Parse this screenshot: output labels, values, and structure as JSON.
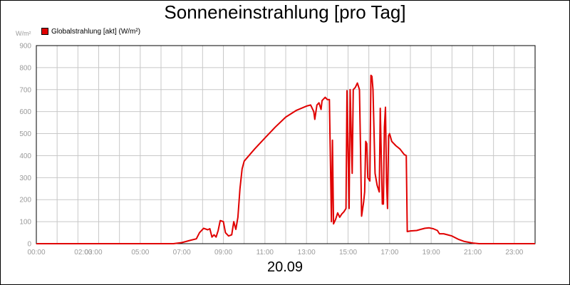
{
  "chart_data": {
    "type": "line",
    "title": "Sonneneinstrahlung [pro Tag]",
    "date_label": "20.09",
    "ylabel": "W/m²",
    "xlabel": "",
    "ylim": [
      0,
      900
    ],
    "xlim": [
      0,
      24
    ],
    "y_ticks": [
      "0",
      "100",
      "200",
      "300",
      "400",
      "500",
      "600",
      "700",
      "800",
      "900"
    ],
    "x_ticks": [
      {
        "h": 0,
        "label": "00:00"
      },
      {
        "h": 2,
        "label": "02:00"
      },
      {
        "h": 3,
        "label": "03:00"
      },
      {
        "h": 5,
        "label": "05:00"
      },
      {
        "h": 7,
        "label": "07:00"
      },
      {
        "h": 9,
        "label": "09:00"
      },
      {
        "h": 11,
        "label": "11:00"
      },
      {
        "h": 13,
        "label": "13:00"
      },
      {
        "h": 15,
        "label": "15:00"
      },
      {
        "h": 17,
        "label": "17:00"
      },
      {
        "h": 19,
        "label": "19:00"
      },
      {
        "h": 21,
        "label": "21:00"
      },
      {
        "h": 23,
        "label": "23:00"
      }
    ],
    "grid": true,
    "legend_position": "top-left",
    "series": [
      {
        "name": "Globalstrahlung [akt] (W/m²)",
        "color": "#e00000",
        "points": [
          [
            0,
            0
          ],
          [
            6.6,
            0
          ],
          [
            7.0,
            5
          ],
          [
            7.4,
            15
          ],
          [
            7.7,
            22
          ],
          [
            7.85,
            50
          ],
          [
            8.05,
            70
          ],
          [
            8.25,
            63
          ],
          [
            8.35,
            68
          ],
          [
            8.45,
            30
          ],
          [
            8.55,
            40
          ],
          [
            8.65,
            30
          ],
          [
            8.75,
            60
          ],
          [
            8.85,
            105
          ],
          [
            9.0,
            100
          ],
          [
            9.1,
            50
          ],
          [
            9.25,
            35
          ],
          [
            9.4,
            40
          ],
          [
            9.5,
            100
          ],
          [
            9.6,
            65
          ],
          [
            9.7,
            120
          ],
          [
            9.8,
            250
          ],
          [
            9.9,
            340
          ],
          [
            10.0,
            375
          ],
          [
            10.5,
            430
          ],
          [
            11.0,
            480
          ],
          [
            11.5,
            530
          ],
          [
            12.0,
            575
          ],
          [
            12.5,
            605
          ],
          [
            13.0,
            625
          ],
          [
            13.2,
            630
          ],
          [
            13.35,
            600
          ],
          [
            13.4,
            565
          ],
          [
            13.5,
            630
          ],
          [
            13.6,
            640
          ],
          [
            13.7,
            610
          ],
          [
            13.75,
            650
          ],
          [
            13.9,
            665
          ],
          [
            14.0,
            655
          ],
          [
            14.1,
            655
          ],
          [
            14.2,
            100
          ],
          [
            14.25,
            470
          ],
          [
            14.3,
            90
          ],
          [
            14.4,
            110
          ],
          [
            14.5,
            140
          ],
          [
            14.6,
            120
          ],
          [
            14.7,
            135
          ],
          [
            14.8,
            145
          ],
          [
            14.9,
            160
          ],
          [
            14.95,
            695
          ],
          [
            15.05,
            160
          ],
          [
            15.1,
            700
          ],
          [
            15.2,
            320
          ],
          [
            15.25,
            700
          ],
          [
            15.35,
            710
          ],
          [
            15.45,
            730
          ],
          [
            15.55,
            700
          ],
          [
            15.6,
            430
          ],
          [
            15.65,
            125
          ],
          [
            15.75,
            190
          ],
          [
            15.8,
            235
          ],
          [
            15.85,
            465
          ],
          [
            15.9,
            455
          ],
          [
            15.95,
            300
          ],
          [
            16.05,
            285
          ],
          [
            16.1,
            765
          ],
          [
            16.15,
            760
          ],
          [
            16.2,
            700
          ],
          [
            16.3,
            320
          ],
          [
            16.4,
            265
          ],
          [
            16.5,
            235
          ],
          [
            16.55,
            615
          ],
          [
            16.65,
            180
          ],
          [
            16.7,
            180
          ],
          [
            16.75,
            530
          ],
          [
            16.8,
            620
          ],
          [
            16.85,
            280
          ],
          [
            16.9,
            160
          ],
          [
            16.95,
            490
          ],
          [
            17.0,
            500
          ],
          [
            17.1,
            465
          ],
          [
            17.3,
            445
          ],
          [
            17.5,
            430
          ],
          [
            17.7,
            405
          ],
          [
            17.8,
            400
          ],
          [
            17.85,
            55
          ],
          [
            18.0,
            58
          ],
          [
            18.3,
            60
          ],
          [
            18.5,
            65
          ],
          [
            18.7,
            70
          ],
          [
            18.9,
            72
          ],
          [
            19.1,
            68
          ],
          [
            19.3,
            60
          ],
          [
            19.4,
            45
          ],
          [
            19.6,
            45
          ],
          [
            19.8,
            40
          ],
          [
            20.0,
            35
          ],
          [
            20.3,
            20
          ],
          [
            20.6,
            10
          ],
          [
            21.0,
            3
          ],
          [
            21.3,
            0
          ],
          [
            24,
            0
          ]
        ]
      }
    ]
  }
}
